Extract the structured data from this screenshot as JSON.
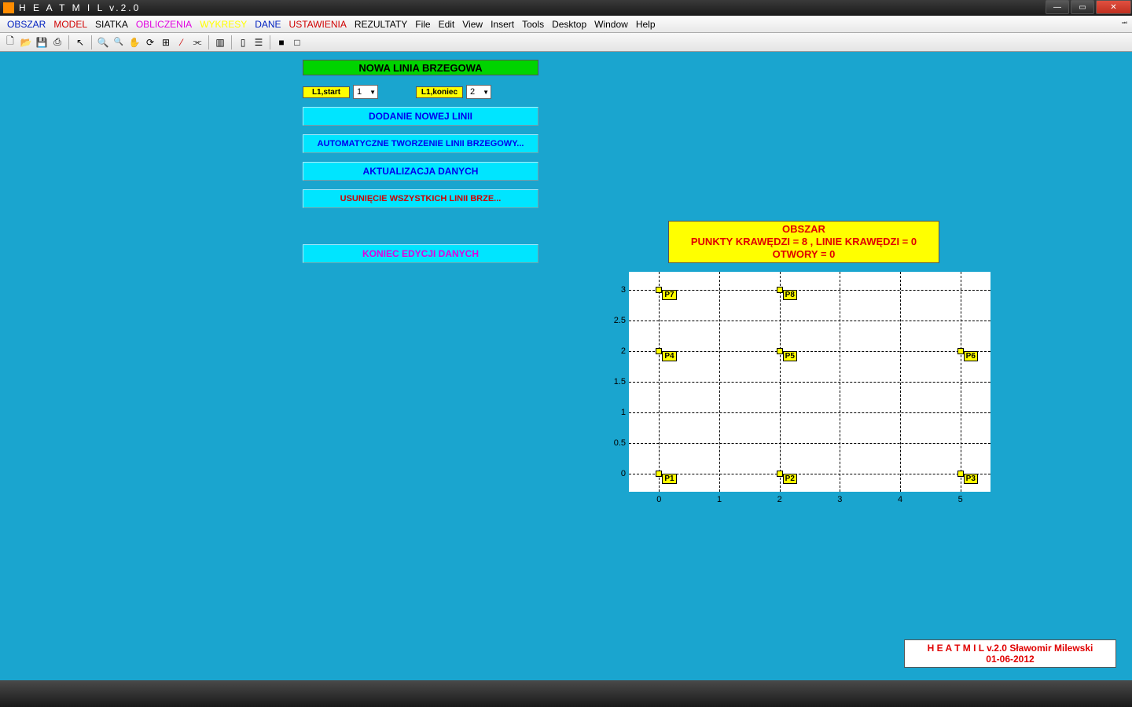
{
  "window": {
    "title": "H E A T M I L    v.2.0"
  },
  "menu": {
    "items": [
      {
        "label": "OBSZAR",
        "cls": "menu-obszar"
      },
      {
        "label": "MODEL",
        "cls": "menu-model"
      },
      {
        "label": "SIATKA",
        "cls": "menu-siatka"
      },
      {
        "label": "OBLICZENIA",
        "cls": "menu-obliczenia"
      },
      {
        "label": "WYKRESY",
        "cls": "menu-wykresy"
      },
      {
        "label": "DANE",
        "cls": "menu-dane"
      },
      {
        "label": "USTAWIENIA",
        "cls": "menu-ustawienia"
      },
      {
        "label": "REZULTATY",
        "cls": "menu-std"
      },
      {
        "label": "File",
        "cls": "menu-std"
      },
      {
        "label": "Edit",
        "cls": "menu-std"
      },
      {
        "label": "View",
        "cls": "menu-std"
      },
      {
        "label": "Insert",
        "cls": "menu-std"
      },
      {
        "label": "Tools",
        "cls": "menu-std"
      },
      {
        "label": "Desktop",
        "cls": "menu-std"
      },
      {
        "label": "Window",
        "cls": "menu-std"
      },
      {
        "label": "Help",
        "cls": "menu-std"
      }
    ]
  },
  "banner": "NOWA LINIA BRZEGOWA",
  "params": {
    "start_label": "L1,start",
    "start_value": "1",
    "end_label": "L1,koniec",
    "end_value": "2"
  },
  "buttons": {
    "dodanie": "DODANIE NOWEJ LINII",
    "auto": "AUTOMATYCZNE TWORZENIE LINII BRZEGOWY...",
    "aktual": "AKTUALIZACJA DANYCH",
    "usun": "USUNIĘCIE WSZYSTKICH LINII BRZE...",
    "koniec": "KONIEC EDYCJI DANYCH"
  },
  "chart": {
    "title_l1": "OBSZAR",
    "title_l2": "PUNKTY KRAWĘDZI = 8 , LINIE KRAWĘDZI = 0",
    "title_l3": "OTWORY = 0",
    "xlim": [
      -0.5,
      5.5
    ],
    "ylim": [
      -0.3,
      3.3
    ],
    "xticks": [
      0,
      1,
      2,
      3,
      4,
      5
    ],
    "yticks": [
      0,
      0.5,
      1,
      1.5,
      2,
      2.5,
      3
    ],
    "points": [
      {
        "id": "P1",
        "x": 0,
        "y": 0
      },
      {
        "id": "P2",
        "x": 2,
        "y": 0
      },
      {
        "id": "P3",
        "x": 5,
        "y": 0
      },
      {
        "id": "P4",
        "x": 0,
        "y": 2
      },
      {
        "id": "P5",
        "x": 2,
        "y": 2
      },
      {
        "id": "P6",
        "x": 5,
        "y": 2
      },
      {
        "id": "P7",
        "x": 0,
        "y": 3
      },
      {
        "id": "P8",
        "x": 2,
        "y": 3
      }
    ],
    "point_marker_color": "#ffff00",
    "grid_color": "#000000",
    "background": "#ffffff"
  },
  "footer": {
    "line1": "H E A T M I L v.2.0    Sławomir Milewski",
    "line2": "01-06-2012"
  }
}
